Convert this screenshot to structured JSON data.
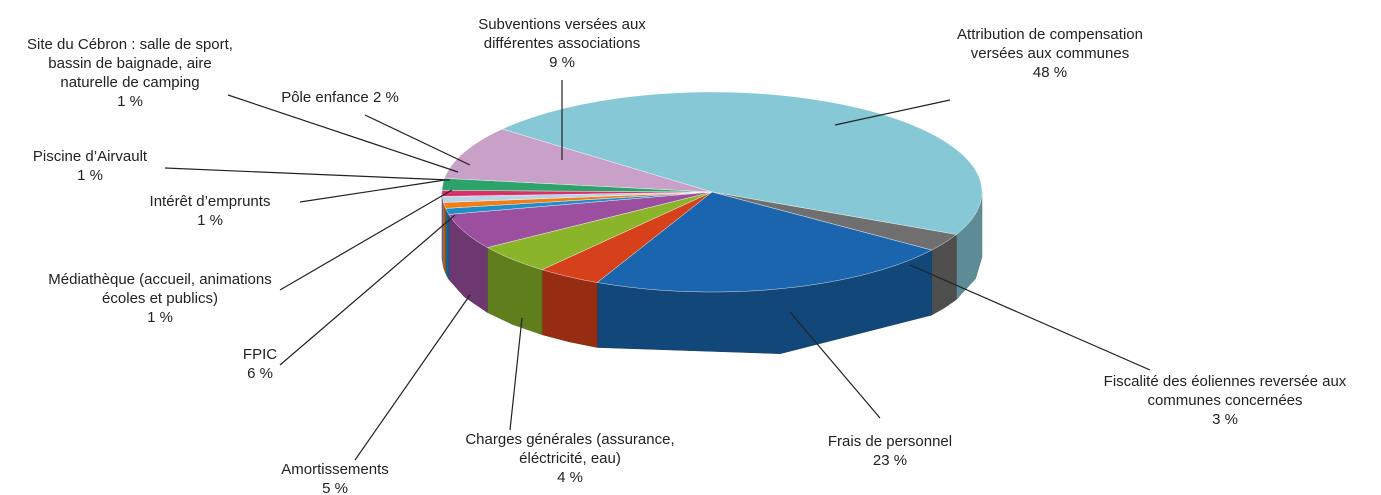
{
  "chart_data": {
    "type": "pie3d",
    "categories": [
      "Attribution de compensation versées aux communes",
      "Fiscalité des éoliennes reversée aux communes concernées",
      "Frais de personnel",
      "Charges générales (assurance, éléctricité, eau)",
      "Amortissements",
      "FPIC",
      "Médiathèque (accueil, animations écoles et publics)",
      "Intérêt d’emprunts",
      "Piscine d’Airvault",
      "Site du Cébron : salle de sport, bassin de baignade, aire naturelle de camping",
      "Pôle enfance",
      "Subventions versées aux différentes associations"
    ],
    "values": [
      48,
      3,
      23,
      4,
      5,
      6,
      1,
      1,
      1,
      1,
      2,
      9
    ],
    "value_labels": [
      "48 %",
      "3 %",
      "23 %",
      "4 %",
      "5 %",
      "6 %",
      "1 %",
      "1 %",
      "1 %",
      "1 %",
      "2 %",
      "9 %"
    ],
    "colors": [
      "#86c8d6",
      "#6f6f6f",
      "#1a65ae",
      "#d6401a",
      "#8ab42a",
      "#9b4f9e",
      "#1f8ec8",
      "#f07f1a",
      "#b8d4e8",
      "#d9306a",
      "#2ba36a",
      "#c8a0c8"
    ]
  }
}
